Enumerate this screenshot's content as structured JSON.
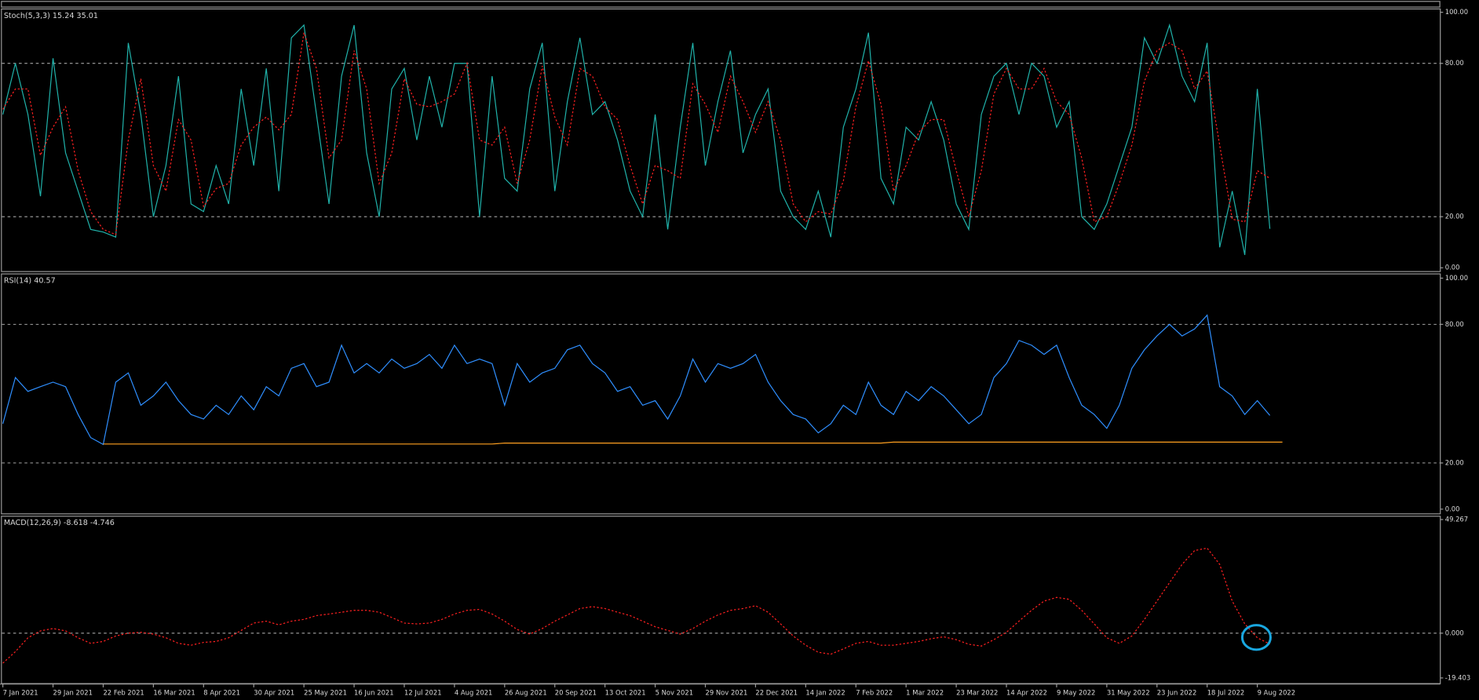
{
  "chart_data": [
    {
      "type": "line",
      "title": "Stoch(5,3,3) 15.24 35.01",
      "ylim": [
        0,
        100
      ],
      "yticks": [
        {
          "value": 100,
          "label": "100.00"
        },
        {
          "value": 80,
          "label": "80.00"
        },
        {
          "value": 20,
          "label": "20.00"
        },
        {
          "value": 0,
          "label": "0.00"
        }
      ],
      "grid": true,
      "series": [
        {
          "color": "#20b2aa",
          "style": "solid",
          "values": [
            60,
            80,
            60,
            28,
            82,
            45,
            30,
            15,
            14,
            12,
            88,
            60,
            20,
            40,
            75,
            25,
            22,
            40,
            25,
            70,
            40,
            78,
            30,
            90,
            95,
            60,
            25,
            75,
            95,
            45,
            20,
            70,
            78,
            50,
            75,
            55,
            80,
            80,
            20,
            75,
            35,
            30,
            70,
            88,
            30,
            65,
            90,
            60,
            65,
            50,
            30,
            20,
            60,
            15,
            55,
            88,
            40,
            65,
            85,
            45,
            60,
            70,
            30,
            20,
            15,
            30,
            12,
            55,
            70,
            92,
            35,
            25,
            55,
            50,
            65,
            50,
            25,
            15,
            60,
            75,
            80,
            60,
            80,
            75,
            55,
            65,
            20,
            15,
            25,
            40,
            55,
            90,
            80,
            95,
            75,
            65,
            88,
            8,
            30,
            5,
            70,
            15.24,
            null
          ]
        },
        {
          "color": "#ff2020",
          "style": "dotted",
          "values": [
            62,
            70,
            70,
            44,
            55,
            63,
            38,
            22,
            15,
            13,
            50,
            74,
            40,
            30,
            58,
            50,
            24,
            31,
            33,
            48,
            55,
            59,
            54,
            60,
            92,
            78,
            43,
            50,
            85,
            70,
            33,
            45,
            74,
            64,
            63,
            65,
            68,
            80,
            50,
            48,
            55,
            33,
            50,
            79,
            59,
            48,
            78,
            75,
            63,
            58,
            40,
            25,
            40,
            38,
            35,
            72,
            64,
            53,
            75,
            65,
            53,
            65,
            50,
            25,
            18,
            22,
            21,
            34,
            63,
            81,
            64,
            30,
            40,
            53,
            58,
            58,
            38,
            20,
            38,
            68,
            78,
            70,
            70,
            78,
            65,
            60,
            43,
            18,
            20,
            33,
            48,
            73,
            85,
            88,
            85,
            70,
            77,
            48,
            19,
            18,
            38,
            35.01,
            null
          ]
        }
      ]
    },
    {
      "type": "line",
      "title": "RSI(14) 40.57",
      "ylim": [
        0,
        100
      ],
      "yticks": [
        {
          "value": 100,
          "label": "100.00"
        },
        {
          "value": 80,
          "label": "80.00"
        },
        {
          "value": 20,
          "label": "20.00"
        },
        {
          "value": 0,
          "label": "0.00"
        }
      ],
      "grid": true,
      "series": [
        {
          "color": "#2f8fff",
          "style": "solid",
          "values": [
            37,
            57,
            51,
            53,
            55,
            53,
            41,
            31,
            28,
            55,
            59,
            45,
            49,
            55,
            47,
            41,
            39,
            45,
            41,
            49,
            43,
            53,
            49,
            61,
            63,
            53,
            55,
            71,
            59,
            63,
            59,
            65,
            61,
            63,
            67,
            61,
            71,
            63,
            65,
            63,
            45,
            63,
            55,
            59,
            61,
            69,
            71,
            63,
            59,
            51,
            53,
            45,
            47,
            39,
            49,
            65,
            55,
            63,
            61,
            63,
            67,
            55,
            47,
            41,
            39,
            33,
            37,
            45,
            41,
            55,
            45,
            41,
            51,
            47,
            53,
            49,
            43,
            37,
            41,
            57,
            63,
            73,
            71,
            67,
            71,
            57,
            45,
            41,
            35,
            45,
            61,
            69,
            75,
            80,
            75,
            78,
            84,
            53,
            49,
            41,
            47,
            40.57,
            null
          ]
        },
        {
          "color": "#ffa020",
          "style": "solid",
          "values": [
            null,
            null,
            null,
            null,
            null,
            null,
            null,
            null,
            28.2,
            28.2,
            28.2,
            28.2,
            28.2,
            28.2,
            28.2,
            28.2,
            28.2,
            28.2,
            28.2,
            28.2,
            28.2,
            28.2,
            28.2,
            28.2,
            28.2,
            28.2,
            28.2,
            28.2,
            28.2,
            28.2,
            28.2,
            28.2,
            28.2,
            28.2,
            28.2,
            28.2,
            28.2,
            28.2,
            28.2,
            28.2,
            28.6,
            28.6,
            28.6,
            28.6,
            28.6,
            28.6,
            28.6,
            28.6,
            28.6,
            28.6,
            28.6,
            28.6,
            28.6,
            28.6,
            28.6,
            28.6,
            28.6,
            28.6,
            28.6,
            28.6,
            28.6,
            28.6,
            28.6,
            28.6,
            28.6,
            28.6,
            28.6,
            28.6,
            28.6,
            28.6,
            28.6,
            29,
            29,
            29,
            29,
            29,
            29,
            29,
            29,
            29,
            29,
            29,
            29,
            29,
            29,
            29,
            29,
            29,
            29,
            29,
            29,
            29,
            29,
            29,
            29,
            29,
            29,
            29,
            29,
            29,
            29,
            29,
            29
          ]
        }
      ]
    },
    {
      "type": "line",
      "title": "MACD(12,26,9) -8.618 -4.746",
      "ylim": [
        -19.403,
        49.267
      ],
      "yticks": [
        49.267,
        {
          "value": 0,
          "label": "0.000"
        },
        -19.403
      ],
      "grid": true,
      "categories": [
        "7 Jan 2021",
        null,
        null,
        null,
        "29 Jan 2021",
        null,
        null,
        null,
        "22 Feb 2021",
        null,
        null,
        null,
        "16 Mar 2021",
        null,
        null,
        null,
        "8 Apr 2021",
        null,
        null,
        null,
        "30 Apr 2021",
        null,
        null,
        null,
        "25 May 2021",
        null,
        null,
        null,
        "16 Jun 2021",
        null,
        null,
        null,
        "12 Jul 2021",
        null,
        null,
        null,
        "4 Aug 2021",
        null,
        null,
        null,
        "26 Aug 2021",
        null,
        null,
        null,
        "20 Sep 2021",
        null,
        null,
        null,
        "13 Oct 2021",
        null,
        null,
        null,
        "5 Nov 2021",
        null,
        null,
        null,
        "29 Nov 2021",
        null,
        null,
        null,
        "22 Dec 2021",
        null,
        null,
        null,
        "14 Jan 2022",
        null,
        null,
        null,
        "7 Feb 2022",
        null,
        null,
        null,
        "1 Mar 2022",
        null,
        null,
        null,
        "23 Mar 2022",
        null,
        null,
        null,
        "14 Apr 2022",
        null,
        null,
        null,
        "9 May 2022",
        null,
        null,
        null,
        "31 May 2022",
        null,
        null,
        null,
        "23 Jun 2022",
        null,
        null,
        null,
        "18 Jul 2022",
        null,
        null,
        null,
        "9 Aug 2022",
        null,
        null
      ],
      "series": [
        {
          "color": "#ff2020",
          "style": "dotted",
          "values": [
            -13,
            -8,
            -2,
            1,
            2,
            1,
            -2,
            -4.4,
            -3.6,
            -1.2,
            0,
            0.4,
            -0.4,
            -2,
            -4.4,
            -5.2,
            -4,
            -3.6,
            -2,
            1.2,
            4.4,
            5.2,
            3.6,
            5.2,
            6,
            7.6,
            8.3,
            9.1,
            9.9,
            9.9,
            9.1,
            6.8,
            4.4,
            4,
            4.4,
            6,
            8.3,
            9.9,
            10.3,
            8.3,
            5.2,
            1.6,
            -0.4,
            2,
            5.2,
            7.9,
            10.7,
            11.5,
            10.7,
            9.1,
            7.6,
            5.2,
            2.8,
            1.2,
            -0.4,
            2,
            5.2,
            7.9,
            9.9,
            10.7,
            11.9,
            9.1,
            4,
            -1.2,
            -5.2,
            -8.3,
            -9.1,
            -6.8,
            -4.4,
            -3.6,
            -5.2,
            -5.2,
            -4.4,
            -3.6,
            -2.4,
            -1.6,
            -2.8,
            -4.8,
            -5.6,
            -2.8,
            0.4,
            5.2,
            9.9,
            13.9,
            15.5,
            14.7,
            9.9,
            4,
            -2,
            -4.4,
            -1.2,
            6,
            13.9,
            21.9,
            29.8,
            35.8,
            36.9,
            29.8,
            13.9,
            4,
            -2,
            -4.746,
            null
          ]
        }
      ]
    }
  ]
}
